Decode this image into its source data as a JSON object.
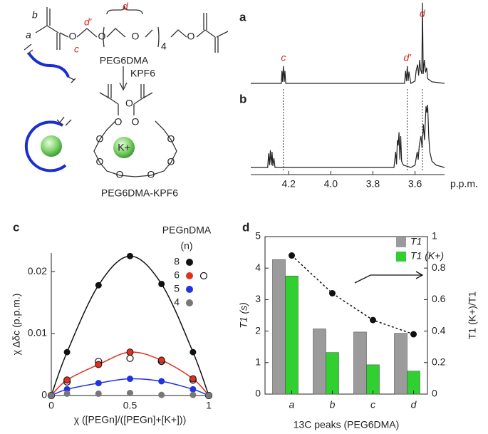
{
  "diagram": {
    "label_b": "b",
    "label_a": "a",
    "label_d_prime": "d′",
    "label_c": "c",
    "label_d": "d",
    "repeat": "4",
    "oxygen": "O",
    "monomer": "PEG6DMA",
    "reagent": "KPF6",
    "ion": "K+",
    "complex": "PEG6DMA-KPF6"
  },
  "chart_data": [
    {
      "type": "spectrum",
      "xlabel": "p.p.m.",
      "xlim": [
        4.38,
        3.46
      ],
      "xticks": [
        4.2,
        {
          "value": 4,
          "label": "4.0"
        },
        3.8,
        3.6
      ],
      "annotations": [
        {
          "text": "c",
          "x": 4.225
        },
        {
          "text": "d′",
          "x": 3.637
        },
        {
          "text": "d",
          "x": 3.565
        }
      ],
      "series": [
        {
          "name": "a",
          "color": "#222",
          "x": [
            4.38,
            4.235,
            4.232,
            4.229,
            4.225,
            4.221,
            4.218,
            4.214,
            3.65,
            3.645,
            3.641,
            3.637,
            3.633,
            3.629,
            3.62,
            3.6,
            3.595,
            3.588,
            3.583,
            3.578,
            3.574,
            3.568,
            3.565,
            3.561,
            3.556,
            3.55,
            3.545,
            3.54,
            3.52,
            3.46
          ],
          "values": [
            0,
            0,
            16,
            2,
            22,
            2,
            16,
            0,
            0,
            16,
            3,
            22,
            3,
            15,
            0,
            3,
            16,
            24,
            10,
            30,
            18,
            12,
            103,
            12,
            30,
            14,
            20,
            6,
            2,
            0
          ]
        },
        {
          "name": "b",
          "color": "#222",
          "x": [
            4.38,
            4.3,
            4.295,
            4.291,
            4.287,
            4.283,
            4.279,
            4.275,
            4.27,
            4.265,
            3.7,
            3.692,
            3.688,
            3.684,
            3.68,
            3.676,
            3.672,
            3.668,
            3.664,
            3.655,
            3.62,
            3.6,
            3.59,
            3.585,
            3.58,
            3.572,
            3.567,
            3.56,
            3.555,
            3.548,
            3.544,
            3.54,
            3.535,
            3.53,
            3.52,
            3.5,
            3.46
          ],
          "values": [
            0,
            0,
            18,
            3,
            22,
            3,
            20,
            2,
            12,
            0,
            0,
            20,
            4,
            35,
            28,
            45,
            10,
            40,
            8,
            3,
            0,
            3,
            20,
            10,
            28,
            40,
            25,
            55,
            35,
            78,
            70,
            80,
            40,
            20,
            8,
            3,
            0
          ]
        }
      ]
    },
    {
      "type": "scatter",
      "panel": "c",
      "ylabel": "χ Δδc (p.p.m.)",
      "xlabel": "χ ([PEGn]/([PEGn]+[K+]))",
      "legend_title": "PEGnDMA",
      "legend_subtitle": "(n)",
      "xlim": [
        0,
        1
      ],
      "ylim": [
        0,
        0.023
      ],
      "xticks": [
        0,
        0.5,
        1
      ],
      "yticks": [
        0,
        0.01,
        0.02
      ],
      "x": [
        0,
        0.1,
        0.3,
        0.5,
        0.7,
        0.9,
        1
      ],
      "series": [
        {
          "name": "8",
          "color": "#111111",
          "fit": true,
          "values": [
            0,
            0.007,
            0.0178,
            0.0225,
            0.018,
            0.007,
            0
          ]
        },
        {
          "name": "6",
          "color": "#e0301e",
          "fit": true,
          "values": [
            0,
            0.0025,
            0.005,
            0.007,
            0.0057,
            0.0027,
            0
          ],
          "open_values": [
            0,
            0.0022,
            0.0055,
            0.006,
            0.0055,
            0.0025,
            0
          ]
        },
        {
          "name": "5",
          "color": "#2233dd",
          "fit": true,
          "values": [
            0,
            0.001,
            0.002,
            0.0027,
            0.0023,
            0.001,
            0
          ]
        },
        {
          "name": "4",
          "color": "#777777",
          "fit": false,
          "values": [
            0,
            0.0003,
            0.0003,
            0.0004,
            0.0001,
            0.0001,
            0
          ]
        }
      ]
    },
    {
      "type": "bar",
      "panel": "d",
      "ylabel": "T1 (s)",
      "y2label": "T1 (K+)/T1",
      "xlabel": "13C peaks (PEG6DMA)",
      "categories": [
        "a",
        "b",
        "c",
        "d"
      ],
      "category_colors": [
        "#222",
        "#222",
        "#d42a1e",
        "#d42a1e"
      ],
      "ylim": [
        0,
        5
      ],
      "yticks": [
        0,
        1,
        2,
        3,
        4,
        5
      ],
      "y2lim": [
        0,
        1
      ],
      "y2ticks": [
        0,
        0.2,
        0.4,
        0.6,
        0.8,
        1
      ],
      "series": [
        {
          "name": "T1",
          "color": "#9b9b9b",
          "values": [
            4.27,
            2.07,
            1.97,
            1.93
          ]
        },
        {
          "name": "T1 (K+)",
          "color": "#2fd02f",
          "values": [
            3.75,
            1.32,
            0.93,
            0.73
          ]
        },
        {
          "axis": "y2",
          "color": "#111",
          "line_style": "dotted",
          "values": [
            0.88,
            0.64,
            0.47,
            0.38
          ]
        }
      ]
    }
  ]
}
